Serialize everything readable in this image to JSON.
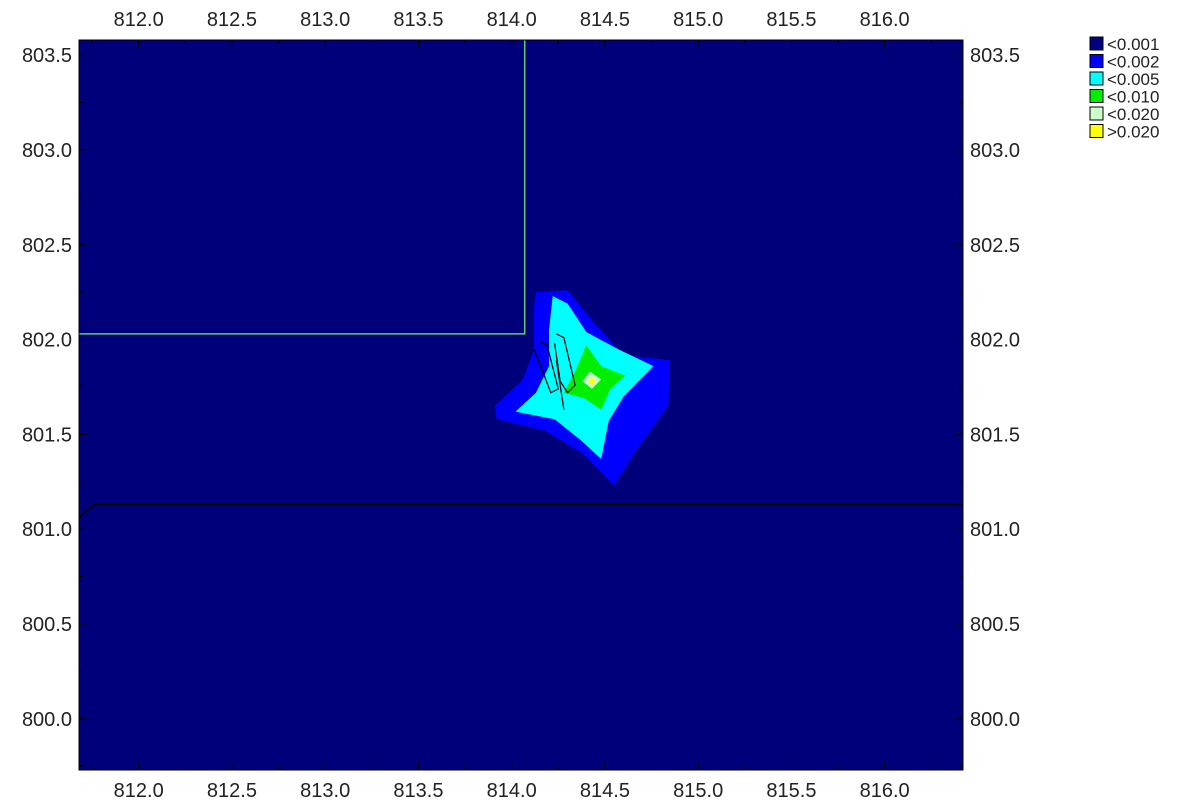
{
  "chart_data": {
    "type": "heatmap",
    "title": "",
    "xlabel": "",
    "ylabel": "",
    "xlim": [
      811.68,
      816.42
    ],
    "ylim": [
      799.73,
      803.58
    ],
    "grid": false,
    "legend_placement": "top-right",
    "x_ticks": [
      "812.0",
      "812.5",
      "813.0",
      "813.5",
      "814.0",
      "814.5",
      "815.0",
      "815.5",
      "816.0"
    ],
    "y_ticks": [
      "800.0",
      "800.5",
      "801.0",
      "801.5",
      "802.0",
      "802.5",
      "803.0",
      "803.5"
    ],
    "background_color": "#00007a",
    "legend": [
      {
        "label": "<0.001",
        "color": "#000080"
      },
      {
        "label": "<0.002",
        "color": "#0000ff"
      },
      {
        "label": "<0.005",
        "color": "#00ffff"
      },
      {
        "label": "<0.010",
        "color": "#00ee00"
      },
      {
        "label": "<0.020",
        "color": "#ccffcc"
      },
      {
        "label": ">0.020",
        "color": "#ffff00"
      }
    ],
    "contours": [
      {
        "level": "<0.002",
        "color": "#0000ff",
        "points": [
          [
            814.13,
            802.25
          ],
          [
            814.3,
            802.26
          ],
          [
            814.45,
            802.08
          ],
          [
            814.6,
            801.92
          ],
          [
            814.85,
            801.89
          ],
          [
            814.84,
            801.65
          ],
          [
            814.67,
            801.42
          ],
          [
            814.55,
            801.23
          ],
          [
            814.38,
            801.4
          ],
          [
            814.18,
            801.52
          ],
          [
            813.92,
            801.58
          ],
          [
            813.91,
            801.65
          ],
          [
            814.06,
            801.79
          ],
          [
            814.12,
            801.95
          ],
          [
            814.12,
            802.17
          ]
        ]
      },
      {
        "level": "<0.005",
        "color": "#00ffff",
        "points": [
          [
            814.22,
            802.23
          ],
          [
            814.3,
            802.19
          ],
          [
            814.4,
            802.04
          ],
          [
            814.57,
            801.95
          ],
          [
            814.76,
            801.86
          ],
          [
            814.6,
            801.7
          ],
          [
            814.52,
            801.57
          ],
          [
            814.48,
            801.37
          ],
          [
            814.37,
            801.47
          ],
          [
            814.23,
            801.58
          ],
          [
            814.02,
            801.62
          ],
          [
            814.13,
            801.72
          ],
          [
            814.2,
            801.86
          ],
          [
            814.2,
            802.05
          ]
        ]
      },
      {
        "level": "<0.010",
        "color": "#00ee00",
        "points": [
          [
            814.4,
            801.97
          ],
          [
            814.48,
            801.86
          ],
          [
            814.61,
            801.81
          ],
          [
            814.53,
            801.74
          ],
          [
            814.48,
            801.63
          ],
          [
            814.39,
            801.69
          ],
          [
            814.28,
            801.72
          ],
          [
            814.34,
            801.83
          ]
        ]
      },
      {
        "level": "<0.020",
        "color": "#ccffcc",
        "points": [
          [
            814.42,
            801.83
          ],
          [
            814.48,
            801.79
          ],
          [
            814.43,
            801.74
          ],
          [
            814.38,
            801.78
          ]
        ]
      },
      {
        "level": ">0.020",
        "color": "#ffff00",
        "points": [
          [
            814.43,
            801.8
          ],
          [
            814.45,
            801.78
          ],
          [
            814.43,
            801.76
          ],
          [
            814.41,
            801.78
          ]
        ]
      }
    ],
    "lines": [
      {
        "color": "#5fd06a",
        "points": [
          [
            811.68,
            802.03
          ],
          [
            814.07,
            802.03
          ],
          [
            814.07,
            803.58
          ]
        ]
      },
      {
        "color": "#000000",
        "points": [
          [
            811.68,
            801.06
          ],
          [
            811.76,
            801.13
          ],
          [
            816.42,
            801.13
          ]
        ]
      }
    ],
    "outlines": [
      {
        "color": "#000000",
        "points": [
          [
            814.15,
            801.99
          ],
          [
            814.19,
            801.97
          ],
          [
            814.25,
            801.74
          ],
          [
            814.21,
            801.72
          ],
          [
            814.12,
            801.95
          ]
        ]
      },
      {
        "color": "#000000",
        "points": [
          [
            814.24,
            802.03
          ],
          [
            814.28,
            802.01
          ],
          [
            814.34,
            801.76
          ],
          [
            814.3,
            801.72
          ],
          [
            814.26,
            801.78
          ],
          [
            814.23,
            801.98
          ]
        ]
      },
      {
        "color": "#000000",
        "points": [
          [
            814.24,
            801.89
          ],
          [
            814.28,
            801.63
          ]
        ]
      }
    ]
  }
}
